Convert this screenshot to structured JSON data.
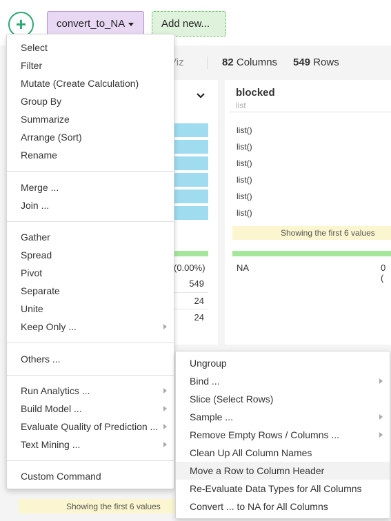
{
  "toolbar": {
    "add_symbol": "+",
    "step_label": "convert_to_NA",
    "add_new_label": "Add new..."
  },
  "info": {
    "viz_partial": "Viz",
    "columns_count": "82",
    "columns_label": "Columns",
    "rows_count": "549",
    "rows_label": "Rows"
  },
  "column": {
    "name": "blocked",
    "type": "list",
    "values": [
      "list()",
      "list()",
      "list()",
      "list()",
      "list()",
      "list()"
    ],
    "showing_text": "Showing the first 6 values",
    "na_label": "NA",
    "na_count_partial": "0 ("
  },
  "left_column": {
    "pct_partial": "(0.00%)",
    "stats": [
      "549",
      "24",
      "24"
    ],
    "showing_text": "Showing the first 6 values"
  },
  "menu": {
    "items": [
      "Select",
      "Filter",
      "Mutate (Create Calculation)",
      "Group By",
      "Summarize",
      "Arrange (Sort)",
      "Rename",
      "Merge ...",
      "Join ...",
      "Gather",
      "Spread",
      "Pivot",
      "Separate",
      "Unite",
      "Keep Only ...",
      "Others ...",
      "Run Analytics ...",
      "Build Model ...",
      "Evaluate Quality of Prediction ...",
      "Text Mining ...",
      "Custom Command"
    ]
  },
  "submenu": {
    "items": [
      "Ungroup",
      "Bind ...",
      "Slice (Select Rows)",
      "Sample ...",
      "Remove Empty Rows / Columns ...",
      "Clean Up All Column Names",
      "Move a Row to Column Header",
      "Re-Evaluate Data Types for All Columns",
      "Convert ... to NA for All Columns"
    ],
    "highlighted_index": 6
  },
  "colors": {
    "accent_green": "#2aa872",
    "step_tab_bg": "#e8d8f3",
    "add_new_bg": "#dff3dc",
    "bar_blue": "#9fdcef",
    "showing_bg": "#fbf6cf"
  }
}
